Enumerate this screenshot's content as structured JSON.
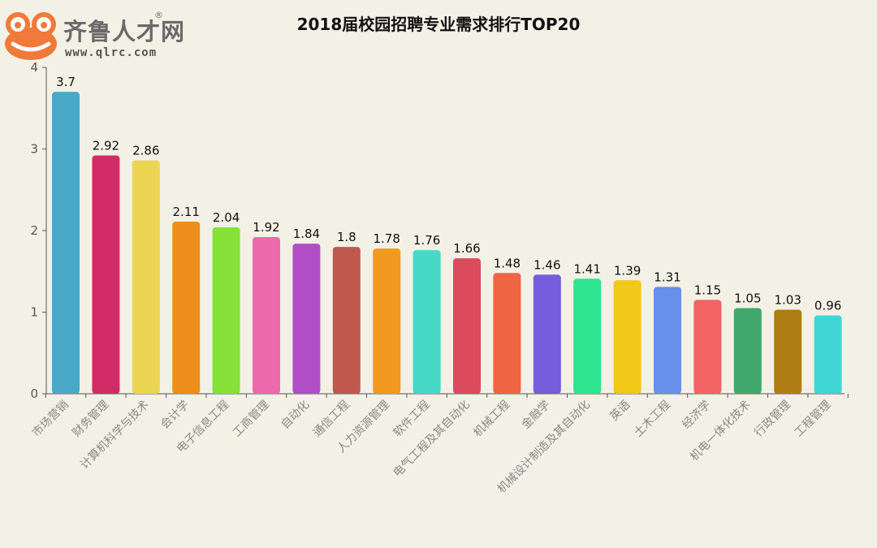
{
  "logo": {
    "brand": "齐鲁人才网",
    "registered": "®",
    "url": "www.qlrc.com"
  },
  "chart_data": {
    "type": "bar",
    "title": "2018届校园招聘专业需求排行TOP20",
    "xlabel": "",
    "ylabel": "",
    "ylim": [
      0,
      4
    ],
    "yticks": [
      0,
      1,
      2,
      3,
      4
    ],
    "grid": false,
    "legend": "none",
    "categories": [
      "市场营销",
      "财务管理",
      "计算机科学与技术",
      "会计学",
      "电子信息工程",
      "工商管理",
      "自动化",
      "通信工程",
      "人力资源管理",
      "软件工程",
      "电气工程及其自动化",
      "机械工程",
      "金融学",
      "机械设计制造及其自动化",
      "英语",
      "土木工程",
      "经济学",
      "机电一体化技术",
      "行政管理",
      "工程管理"
    ],
    "values": [
      3.7,
      2.92,
      2.86,
      2.11,
      2.04,
      1.92,
      1.84,
      1.8,
      1.78,
      1.76,
      1.66,
      1.48,
      1.46,
      1.41,
      1.39,
      1.31,
      1.15,
      1.05,
      1.03,
      0.96
    ],
    "value_labels": [
      "3.7",
      "2.92",
      "2.86",
      "2.11",
      "2.04",
      "1.92",
      "1.84",
      "1.8",
      "1.78",
      "1.76",
      "1.66",
      "1.48",
      "1.46",
      "1.41",
      "1.39",
      "1.31",
      "1.15",
      "1.05",
      "1.03",
      "0.96"
    ],
    "colors": [
      "#4aa8c9",
      "#d22c66",
      "#ecd552",
      "#ee8e1c",
      "#86e138",
      "#ec6aab",
      "#b04fc5",
      "#c1584f",
      "#f29a1f",
      "#47d8c6",
      "#db4a5d",
      "#ef6544",
      "#755ddc",
      "#2fe58f",
      "#f2c819",
      "#6690e9",
      "#f26463",
      "#3fa86a",
      "#ae7d14",
      "#40d6d5"
    ]
  }
}
